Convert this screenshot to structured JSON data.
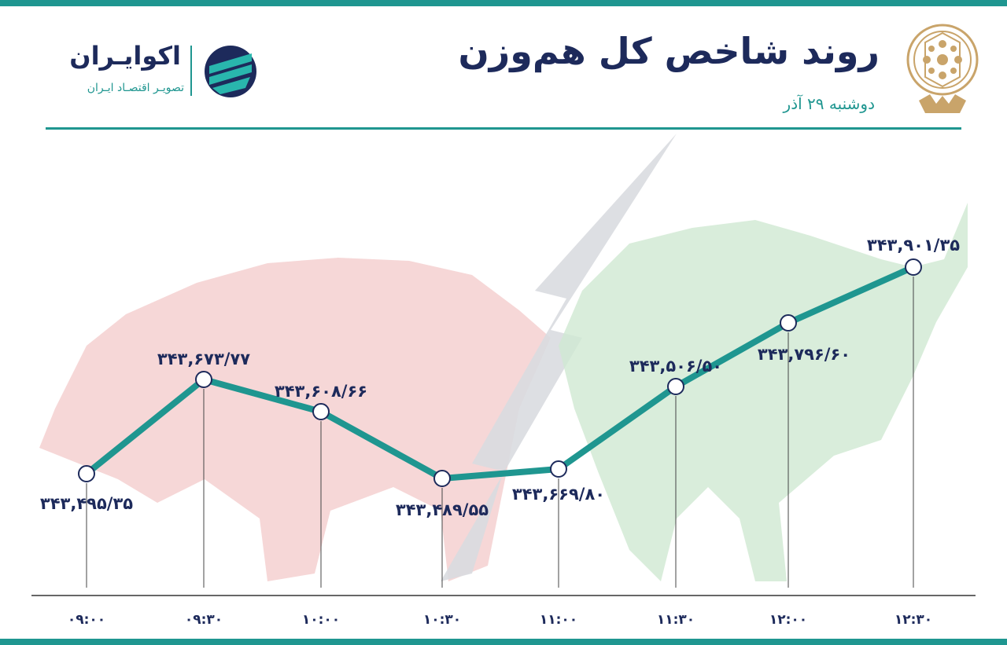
{
  "header": {
    "title": "روند شاخص کل هم‌وزن",
    "subtitle": "دوشنبه ۲۹ آذر"
  },
  "brand": {
    "name": "اکوایـران",
    "tagline": "تصویـر اقتصـاد ایـران",
    "mark_icon": "ecoiran-logo-icon",
    "seal_icon": "tehran-stock-exchange-seal-icon"
  },
  "colors": {
    "accent": "#1f9690",
    "text": "#1d2a5b",
    "bear": "#f3c9c9",
    "bull": "#cfe8d2",
    "lightning": "#d9dbe0"
  },
  "chart_data": {
    "type": "line",
    "categories": [
      "۰۹:۰۰",
      "۰۹:۳۰",
      "۱۰:۰۰",
      "۱۰:۳۰",
      "۱۱:۰۰",
      "۱۱:۳۰",
      "۱۲:۰۰",
      "۱۲:۳۰"
    ],
    "values": [
      343495.35,
      343673.77,
      343608.66,
      343489.55,
      343669.8,
      343506.5,
      343796.6,
      343901.35
    ],
    "labels": [
      "۳۴۳,۴۹۵/۳۵",
      "۳۴۳,۶۷۳/۷۷",
      "۳۴۳,۶۰۸/۶۶",
      "۳۴۳,۴۸۹/۵۵",
      "۳۴۳,۶۶۹/۸۰",
      "۳۴۳,۵۰۶/۵۰",
      "۳۴۳,۷۹۶/۶۰",
      "۳۴۳,۹۰۱/۳۵"
    ],
    "title": "روند شاخص کل هم‌وزن",
    "xlabel": "",
    "ylabel": "",
    "grid": false,
    "legend": "none"
  }
}
